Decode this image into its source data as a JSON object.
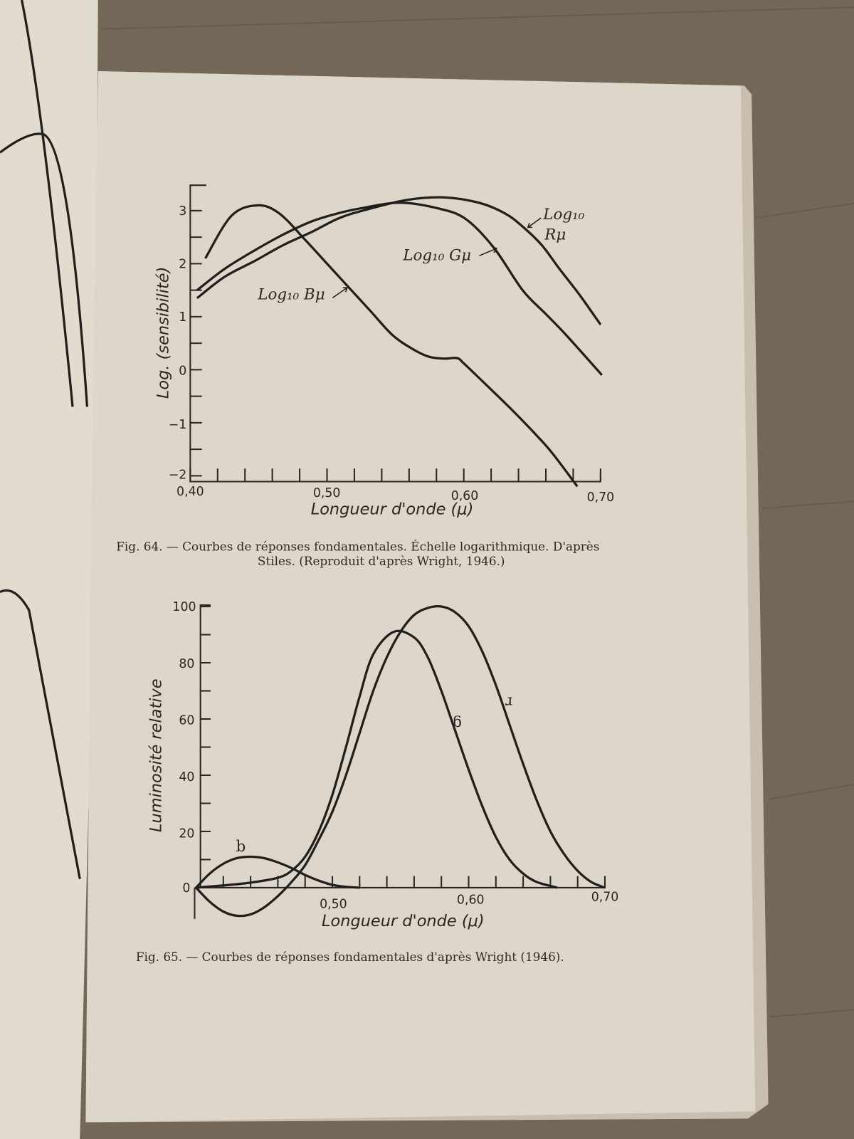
{
  "chart_data": [
    {
      "type": "line",
      "figure_caption": "Fig. 64. — Courbes de réponses fondamentales. Échelle logarithmique. D'après Stiles. (Reproduit d'après Wright, 1946.)",
      "caption_line1": "Fig. 64. — Courbes de réponses fondamentales. Échelle logarithmique. D'après",
      "caption_line2": "Stiles. (Reproduit d'après Wright, 1946.)",
      "xlabel": "Longueur d'onde (μ)",
      "ylabel": "Log. (sensibilité)",
      "xlim": [
        0.4,
        0.7
      ],
      "ylim": [
        -2,
        3.4
      ],
      "x_tick_labels": [
        "0,40",
        "0,50",
        "0,60",
        "0,70"
      ],
      "y_tick_labels": [
        "3",
        "2",
        "1",
        "0",
        "−1",
        "−2"
      ],
      "grid": false,
      "series": [
        {
          "name": "Log10 Bμ",
          "x": [
            0.411,
            0.43,
            0.449,
            0.465,
            0.484,
            0.5,
            0.516,
            0.532,
            0.548,
            0.562,
            0.574,
            0.585,
            0.595,
            0.6,
            0.615,
            0.633,
            0.65,
            0.664,
            0.683
          ],
          "y": [
            2.1,
            2.9,
            3.1,
            2.95,
            2.45,
            2.0,
            1.55,
            1.1,
            0.65,
            0.4,
            0.25,
            0.21,
            0.22,
            0.12,
            -0.25,
            -0.7,
            -1.15,
            -1.55,
            -2.2
          ]
        },
        {
          "name": "Log10 Gμ",
          "x": [
            0.405,
            0.425,
            0.447,
            0.468,
            0.489,
            0.508,
            0.526,
            0.553,
            0.58,
            0.601,
            0.622,
            0.643,
            0.66,
            0.675,
            0.701
          ],
          "y": [
            1.5,
            1.9,
            2.25,
            2.55,
            2.8,
            2.95,
            3.05,
            3.15,
            3.05,
            2.85,
            2.3,
            1.5,
            1.05,
            0.65,
            -0.1
          ]
        },
        {
          "name": "Log10 Rμ",
          "x": [
            0.405,
            0.425,
            0.447,
            0.468,
            0.489,
            0.508,
            0.526,
            0.558,
            0.585,
            0.611,
            0.63,
            0.643,
            0.657,
            0.67,
            0.685,
            0.7
          ],
          "y": [
            1.35,
            1.75,
            2.05,
            2.35,
            2.6,
            2.85,
            3.0,
            3.2,
            3.25,
            3.15,
            2.95,
            2.7,
            2.35,
            1.9,
            1.4,
            0.85
          ]
        }
      ],
      "labels": {
        "b": "Log₁₀ Bμ",
        "g": "Log₁₀ Gμ",
        "r_top": "Log₁₀",
        "r_bottom": "Rμ"
      }
    },
    {
      "type": "line",
      "figure_caption": "Fig. 65. — Courbes de réponses fondamentales d'après Wright (1946).",
      "xlabel": "Longueur d'onde (μ)",
      "ylabel": "Luminosité relative",
      "xlim": [
        0.4,
        0.7
      ],
      "ylim": [
        -12,
        100
      ],
      "x_tick_labels": [
        "0,50",
        "0,60",
        "0,70"
      ],
      "y_tick_labels": [
        "100",
        "80",
        "60",
        "40",
        "20",
        "0"
      ],
      "grid": false,
      "series": [
        {
          "name": "b",
          "x": [
            0.4,
            0.41,
            0.42,
            0.43,
            0.44,
            0.45,
            0.46,
            0.47,
            0.48,
            0.49,
            0.5,
            0.51,
            0.52
          ],
          "y": [
            0,
            5,
            8.5,
            10.5,
            11,
            10.5,
            9,
            7,
            4.5,
            2.5,
            1,
            0.3,
            0
          ]
        },
        {
          "name": "g",
          "x": [
            0.4,
            0.42,
            0.44,
            0.46,
            0.47,
            0.48,
            0.49,
            0.5,
            0.51,
            0.52,
            0.53,
            0.545,
            0.56,
            0.57,
            0.58,
            0.59,
            0.6,
            0.61,
            0.62,
            0.63,
            0.64,
            0.65,
            0.665
          ],
          "y": [
            0,
            0.8,
            1.8,
            3.5,
            6,
            11,
            20,
            33,
            50,
            68,
            83,
            91,
            89,
            82,
            70,
            56,
            42,
            29,
            18,
            10,
            5,
            2,
            0
          ]
        },
        {
          "name": "r",
          "x": [
            0.4,
            0.41,
            0.42,
            0.43,
            0.44,
            0.45,
            0.46,
            0.47,
            0.48,
            0.49,
            0.5,
            0.51,
            0.52,
            0.53,
            0.54,
            0.55,
            0.56,
            0.57,
            0.58,
            0.59,
            0.6,
            0.61,
            0.62,
            0.63,
            0.64,
            0.65,
            0.66,
            0.67,
            0.68,
            0.69,
            0.7
          ],
          "y": [
            0,
            -5,
            -8.5,
            -10,
            -9.5,
            -7,
            -3,
            2,
            8,
            17,
            27,
            40,
            55,
            70,
            82,
            91,
            97,
            99.5,
            100,
            98,
            93,
            84,
            72,
            58,
            44,
            31,
            20,
            12,
            6,
            2,
            0
          ]
        }
      ],
      "labels": {
        "b": "b",
        "g": "g",
        "r": "r"
      }
    }
  ],
  "colors": {
    "page": "#ddd5c8",
    "ink": "#221e1b",
    "table": "#6e6356"
  }
}
